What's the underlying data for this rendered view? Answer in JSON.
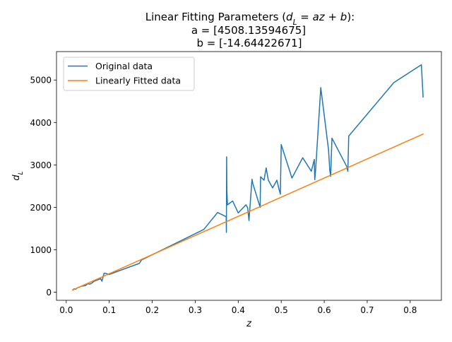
{
  "chart_data": {
    "type": "line",
    "title_lines": [
      {
        "prefix": "Linear Fitting Parameters (",
        "math": "d_L = az + b",
        "suffix": "):"
      },
      {
        "text": "a = [4508.13594675]"
      },
      {
        "text": "b = [-14.64422671]"
      }
    ],
    "xlabel": "z",
    "ylabel": "d_L",
    "xlim": [
      -0.0227,
      0.8726
    ],
    "ylim": [
      -190,
      5670
    ],
    "xticks": [
      0.0,
      0.1,
      0.2,
      0.3,
      0.4,
      0.5,
      0.6,
      0.7,
      0.8
    ],
    "xtick_labels": [
      "0.0",
      "0.1",
      "0.2",
      "0.3",
      "0.4",
      "0.5",
      "0.6",
      "0.7",
      "0.8"
    ],
    "yticks": [
      0,
      1000,
      2000,
      3000,
      4000,
      5000
    ],
    "ytick_labels": [
      "0",
      "1000",
      "2000",
      "3000",
      "4000",
      "5000"
    ],
    "legend_position": "upper-left",
    "series": [
      {
        "name": "Original data",
        "color": "#1f77b4",
        "x": [
          0.015,
          0.018,
          0.022,
          0.025,
          0.03,
          0.035,
          0.04,
          0.045,
          0.05,
          0.055,
          0.06,
          0.065,
          0.07,
          0.075,
          0.08,
          0.083,
          0.088,
          0.093,
          0.1,
          0.17,
          0.175,
          0.32,
          0.352,
          0.372,
          0.3725,
          0.373,
          0.3735,
          0.375,
          0.387,
          0.4,
          0.418,
          0.422,
          0.425,
          0.432,
          0.434,
          0.451,
          0.452,
          0.46,
          0.465,
          0.47,
          0.48,
          0.49,
          0.495,
          0.498,
          0.5,
          0.525,
          0.55,
          0.57,
          0.577,
          0.578,
          0.58,
          0.592,
          0.61,
          0.613,
          0.615,
          0.618,
          0.652,
          0.655,
          0.657,
          0.762,
          0.826,
          0.83
        ],
        "y": [
          50,
          80,
          70,
          100,
          120,
          140,
          150,
          160,
          200,
          190,
          220,
          260,
          280,
          300,
          320,
          260,
          450,
          440,
          420,
          680,
          760,
          1480,
          1880,
          1780,
          1410,
          3190,
          2420,
          2060,
          2150,
          1870,
          2060,
          1990,
          1690,
          2660,
          2560,
          2000,
          2720,
          2640,
          2930,
          2640,
          2460,
          2640,
          2420,
          2310,
          3480,
          2690,
          3170,
          2850,
          3130,
          2650,
          2880,
          4820,
          3360,
          2870,
          2730,
          3630,
          2970,
          2850,
          3680,
          4940,
          5360,
          4600
        ]
      },
      {
        "name": "Linearly Fitted data",
        "color": "#ff7f0e",
        "x": [
          0.015,
          0.83
        ],
        "y": [
          53.0,
          3727.1
        ]
      }
    ]
  }
}
